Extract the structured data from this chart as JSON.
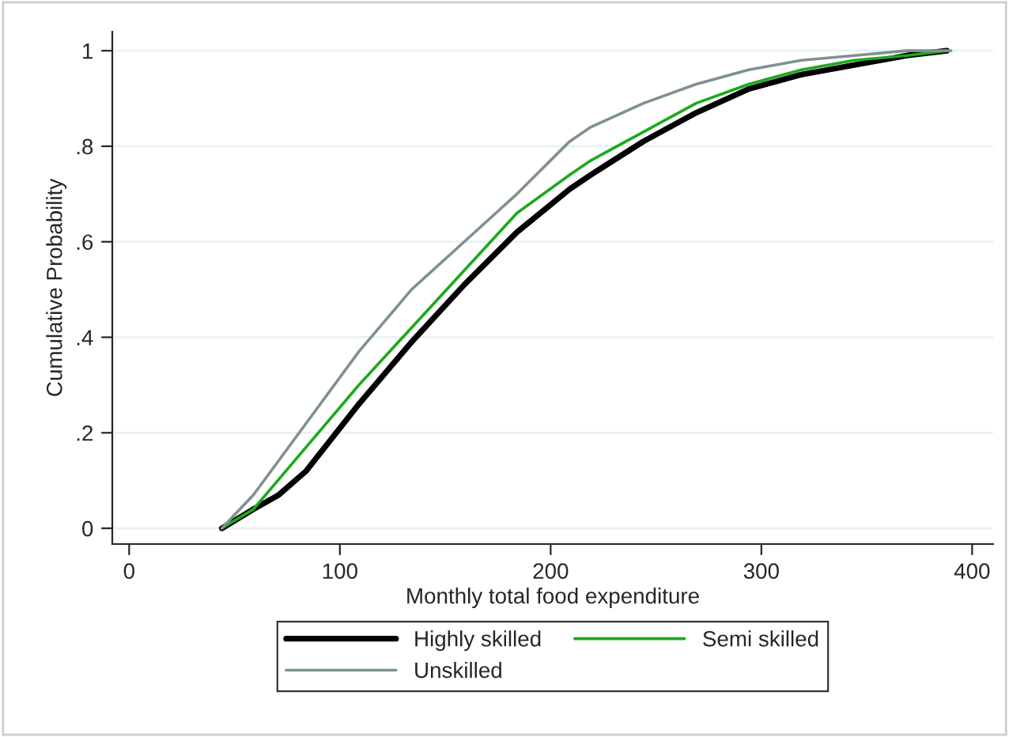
{
  "chart_data": {
    "type": "line",
    "xlabel": "Monthly total food expenditure",
    "ylabel": "Cumulative Probability",
    "xlim": [
      -8,
      410
    ],
    "xticks": [
      0,
      100,
      200,
      300,
      400
    ],
    "ylim": [
      -0.033,
      1.04
    ],
    "yticks": [
      {
        "value": 0,
        "label": "0"
      },
      {
        "value": 0.2,
        "label": ".2"
      },
      {
        "value": 0.4,
        "label": ".4"
      },
      {
        "value": 0.6,
        "label": ".6"
      },
      {
        "value": 0.8,
        "label": ".8"
      },
      {
        "value": 1,
        "label": "1"
      }
    ],
    "grid": "y",
    "legend": "bottom",
    "line_style": "solid",
    "marker": "none",
    "series": [
      {
        "name": "Highly skilled",
        "color": "#000000",
        "x": [
          44,
          59,
          71,
          84,
          109,
          134,
          159,
          184,
          209,
          219,
          244,
          269,
          294,
          319,
          344,
          369,
          388
        ],
        "values": [
          0,
          0.04,
          0.07,
          0.12,
          0.26,
          0.39,
          0.51,
          0.62,
          0.71,
          0.74,
          0.81,
          0.87,
          0.92,
          0.95,
          0.97,
          0.99,
          1
        ]
      },
      {
        "name": "Semi skilled",
        "color": "#1ca91c",
        "x": [
          44,
          59,
          84,
          109,
          134,
          159,
          184,
          209,
          219,
          244,
          269,
          294,
          319,
          344,
          369,
          388
        ],
        "values": [
          0,
          0.04,
          0.17,
          0.3,
          0.42,
          0.54,
          0.66,
          0.74,
          0.77,
          0.83,
          0.89,
          0.93,
          0.96,
          0.98,
          0.99,
          1
        ]
      },
      {
        "name": "Unskilled",
        "color": "#7f9191",
        "x": [
          44,
          59,
          84,
          109,
          134,
          159,
          184,
          209,
          219,
          244,
          269,
          294,
          319,
          344,
          369,
          390
        ],
        "values": [
          0,
          0.07,
          0.22,
          0.37,
          0.5,
          0.6,
          0.7,
          0.81,
          0.84,
          0.89,
          0.93,
          0.96,
          0.98,
          0.99,
          1,
          1
        ]
      }
    ]
  }
}
